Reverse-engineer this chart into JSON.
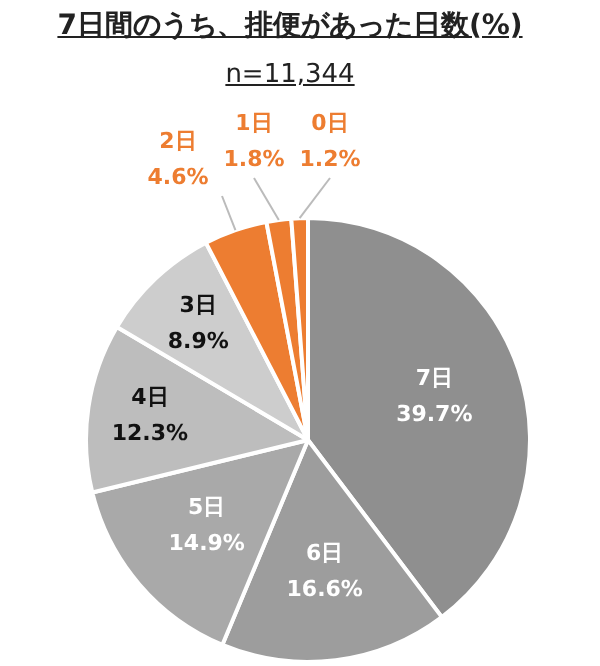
{
  "chart_data": {
    "type": "pie",
    "title": "7日間のうち、排便があった日数(%)",
    "subtitle": "n=11,344",
    "categories": [
      "7日",
      "6日",
      "5日",
      "4日",
      "3日",
      "2日",
      "1日",
      "0日"
    ],
    "values": [
      39.7,
      16.6,
      14.9,
      12.3,
      8.9,
      4.6,
      1.8,
      1.2
    ],
    "colors": [
      "#8f8f8f",
      "#9d9d9d",
      "#a9a9a9",
      "#bdbdbd",
      "#cdcdcd",
      "#ed7d31",
      "#ed7d31",
      "#ed7d31"
    ],
    "value_labels": [
      "39.7%",
      "16.6%",
      "14.9%",
      "12.3%",
      "8.9%",
      "4.6%",
      "1.8%",
      "1.2%"
    ],
    "legend": false
  }
}
